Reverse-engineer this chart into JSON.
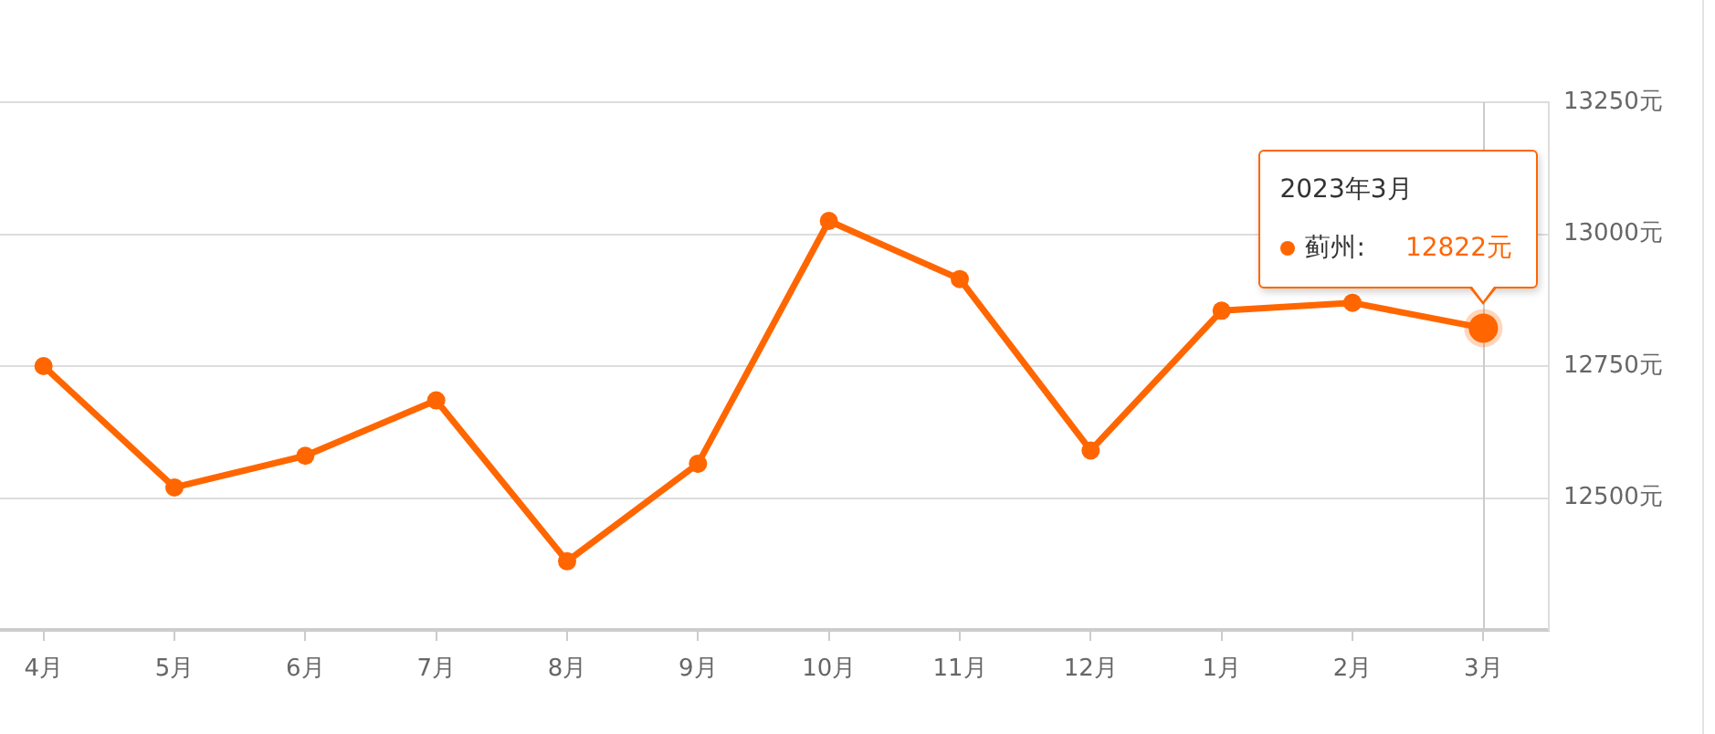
{
  "chart_data": {
    "type": "line",
    "categories": [
      "4月",
      "5月",
      "6月",
      "7月",
      "8月",
      "9月",
      "10月",
      "11月",
      "12月",
      "1月",
      "2月",
      "3月"
    ],
    "series": [
      {
        "name": "蓟州:",
        "color": "#ff6600",
        "values": [
          12750,
          12520,
          12580,
          12685,
          12380,
          12565,
          13025,
          12915,
          12590,
          12855,
          12870,
          12822
        ],
        "value_labels": [
          null,
          null,
          null,
          null,
          null,
          null,
          null,
          null,
          null,
          null,
          null,
          "12822元"
        ]
      }
    ],
    "ylim": [
      12250,
      13250
    ],
    "yticks": [
      {
        "value": 12500,
        "label": "12500元"
      },
      {
        "value": 12750,
        "label": "12750元"
      },
      {
        "value": 13000,
        "label": "13000元"
      },
      {
        "value": 13250,
        "label": "13250元"
      }
    ],
    "grid": "y",
    "legend": "top right",
    "marker": "circle",
    "line_style": "solid",
    "annotations": [
      "2023年3月"
    ],
    "ref_lines": [
      {
        "axis": "x",
        "value": "3月",
        "color": "#cccccc"
      }
    ]
  }
}
